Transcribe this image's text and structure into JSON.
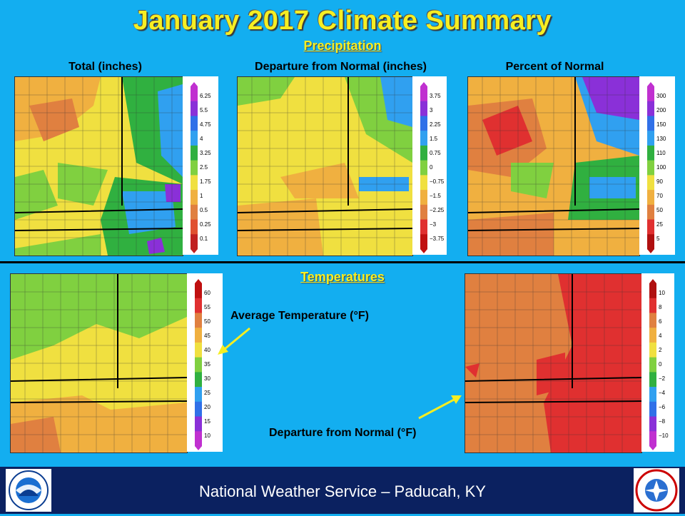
{
  "title": "January 2017 Climate Summary",
  "sections": {
    "precipitation": "Precipitation",
    "temperatures": "Temperatures"
  },
  "maps": {
    "total": {
      "caption": "Total (inches)",
      "legend": [
        "6.25",
        "5.5",
        "4.75",
        "4",
        "3.25",
        "2.5",
        "1.75",
        "1",
        "0.5",
        "0.25",
        "0.1"
      ],
      "colors": [
        "#c030d0",
        "#8a30d8",
        "#3070e8",
        "#30a0f0",
        "#30b040",
        "#80d040",
        "#f0e040",
        "#f0b040",
        "#e08040",
        "#e05030",
        "#c02020"
      ]
    },
    "departure": {
      "caption": "Departure from Normal (inches)",
      "legend": [
        "3.75",
        "3",
        "2.25",
        "1.5",
        "0.75",
        "0",
        "−0.75",
        "−1.5",
        "−2.25",
        "−3",
        "−3.75"
      ],
      "colors": [
        "#c030d0",
        "#8a30d8",
        "#3070e8",
        "#30a0f0",
        "#30b040",
        "#80d040",
        "#f0e040",
        "#f0b040",
        "#e08040",
        "#e03030",
        "#c01010"
      ]
    },
    "percent": {
      "caption": "Percent of Normal",
      "legend": [
        "300",
        "200",
        "150",
        "130",
        "110",
        "100",
        "90",
        "70",
        "50",
        "25",
        "5"
      ],
      "colors": [
        "#c030d0",
        "#8a30d8",
        "#3070e8",
        "#30a0f0",
        "#30b040",
        "#80d040",
        "#f0e040",
        "#f0b040",
        "#e08040",
        "#e03030",
        "#b01010"
      ]
    },
    "avg_temp": {
      "caption": "Average Temperature (°F)",
      "legend": [
        "60",
        "55",
        "50",
        "45",
        "40",
        "35",
        "30",
        "25",
        "20",
        "15",
        "10"
      ],
      "colors": [
        "#c01010",
        "#e03030",
        "#e08040",
        "#f0b040",
        "#f0e040",
        "#80d040",
        "#30b040",
        "#30a0f0",
        "#3070e8",
        "#8a30d8",
        "#c030d0"
      ]
    },
    "temp_departure": {
      "caption": "Departure from Normal (°F)",
      "legend": [
        "10",
        "8",
        "6",
        "4",
        "2",
        "0",
        "−2",
        "−4",
        "−6",
        "−8",
        "−10"
      ],
      "colors": [
        "#b01010",
        "#e03030",
        "#e08040",
        "#f0b040",
        "#f0e040",
        "#80d040",
        "#30b040",
        "#30a0f0",
        "#3070e8",
        "#8a30d8",
        "#c030d0"
      ]
    }
  },
  "footer": {
    "text": "National Weather Service – Paducah, KY",
    "left_logo": "noaa-logo",
    "right_logo": "nws-logo"
  }
}
